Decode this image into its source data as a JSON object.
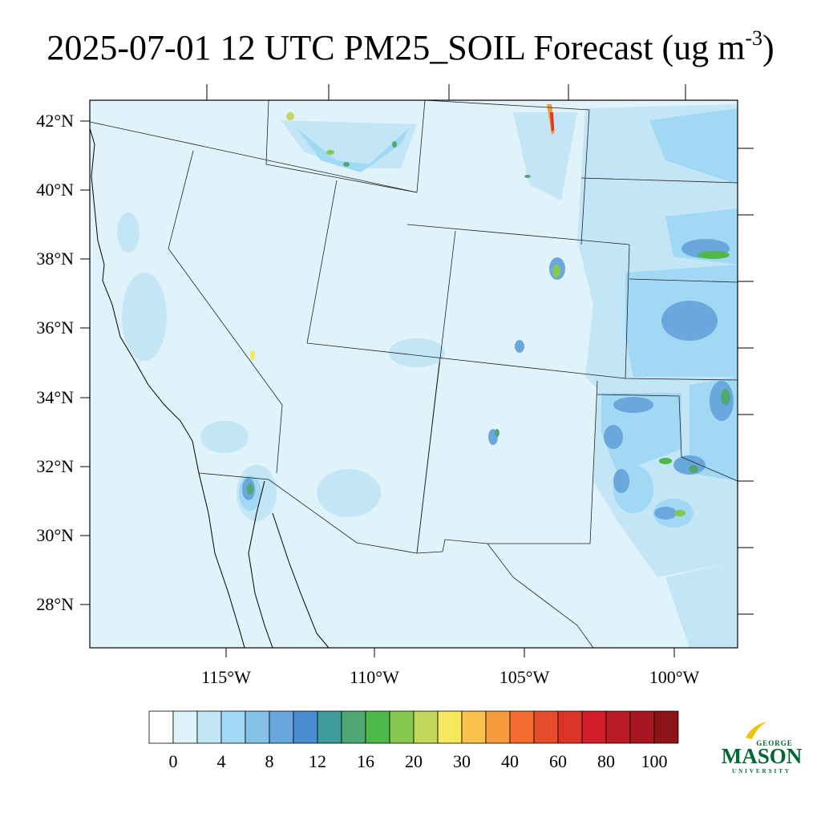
{
  "title": {
    "main": "2025-07-01 12 UTC PM25_SOIL Forecast (ug m",
    "superscript": "-3",
    "close": ")"
  },
  "map": {
    "lat_labels": [
      "42°N",
      "40°N",
      "38°N",
      "36°N",
      "34°N",
      "32°N",
      "30°N",
      "28°N"
    ],
    "lon_labels": [
      "115°W",
      "110°W",
      "105°W",
      "100°W"
    ],
    "background_color": "#e0f3fb",
    "boundary_color": "#000000"
  },
  "colorbar": {
    "labels": [
      "0",
      "4",
      "8",
      "12",
      "16",
      "20",
      "30",
      "40",
      "60",
      "80",
      "100"
    ],
    "colors": [
      "#ffffff",
      "#e0f3fb",
      "#c3e6f7",
      "#a1d8f4",
      "#86c1e7",
      "#6aa7dc",
      "#4a8dd1",
      "#3e9b9b",
      "#4fa873",
      "#4eb84a",
      "#87c850",
      "#c3d85a",
      "#f6e85c",
      "#f8c24c",
      "#f69a3e",
      "#f46c2f",
      "#e64b2a",
      "#dc3426",
      "#d21e2b",
      "#b91c24",
      "#a6171f",
      "#8c1418"
    ]
  },
  "logo": {
    "top": "GEORGE",
    "main": "MASON",
    "bottom": "UNIVERSITY",
    "color": "#006633",
    "accent": "#f2c200"
  }
}
